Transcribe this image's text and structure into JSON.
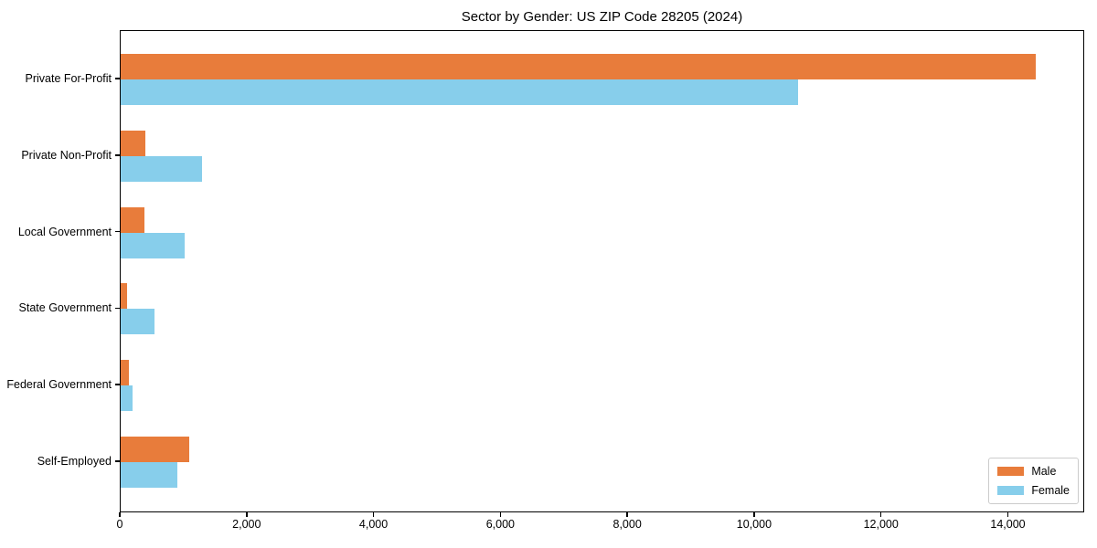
{
  "chart_data": {
    "type": "bar",
    "orientation": "horizontal",
    "title": "Sector by Gender: US ZIP Code 28205 (2024)",
    "categories": [
      "Private For-Profit",
      "Private Non-Profit",
      "Local Government",
      "State Government",
      "Federal Government",
      "Self-Employed"
    ],
    "series": [
      {
        "name": "Male",
        "color": "#E87C3B",
        "values": [
          14430,
          390,
          375,
          105,
          125,
          1075
        ]
      },
      {
        "name": "Female",
        "color": "#87CEEB",
        "values": [
          10680,
          1280,
          1005,
          535,
          185,
          890
        ]
      }
    ],
    "xlabel": "",
    "ylabel": "",
    "xlim": [
      0,
      15160
    ],
    "xticks": [
      0,
      2000,
      4000,
      6000,
      8000,
      10000,
      12000,
      14000
    ],
    "xtick_labels": [
      "0",
      "2,000",
      "4,000",
      "6,000",
      "8,000",
      "10,000",
      "12,000",
      "14,000"
    ],
    "legend_position": "lower right",
    "grid": false,
    "colors": {
      "axis": "#000000",
      "legend_border": "#cccccc",
      "background": "#ffffff"
    }
  }
}
